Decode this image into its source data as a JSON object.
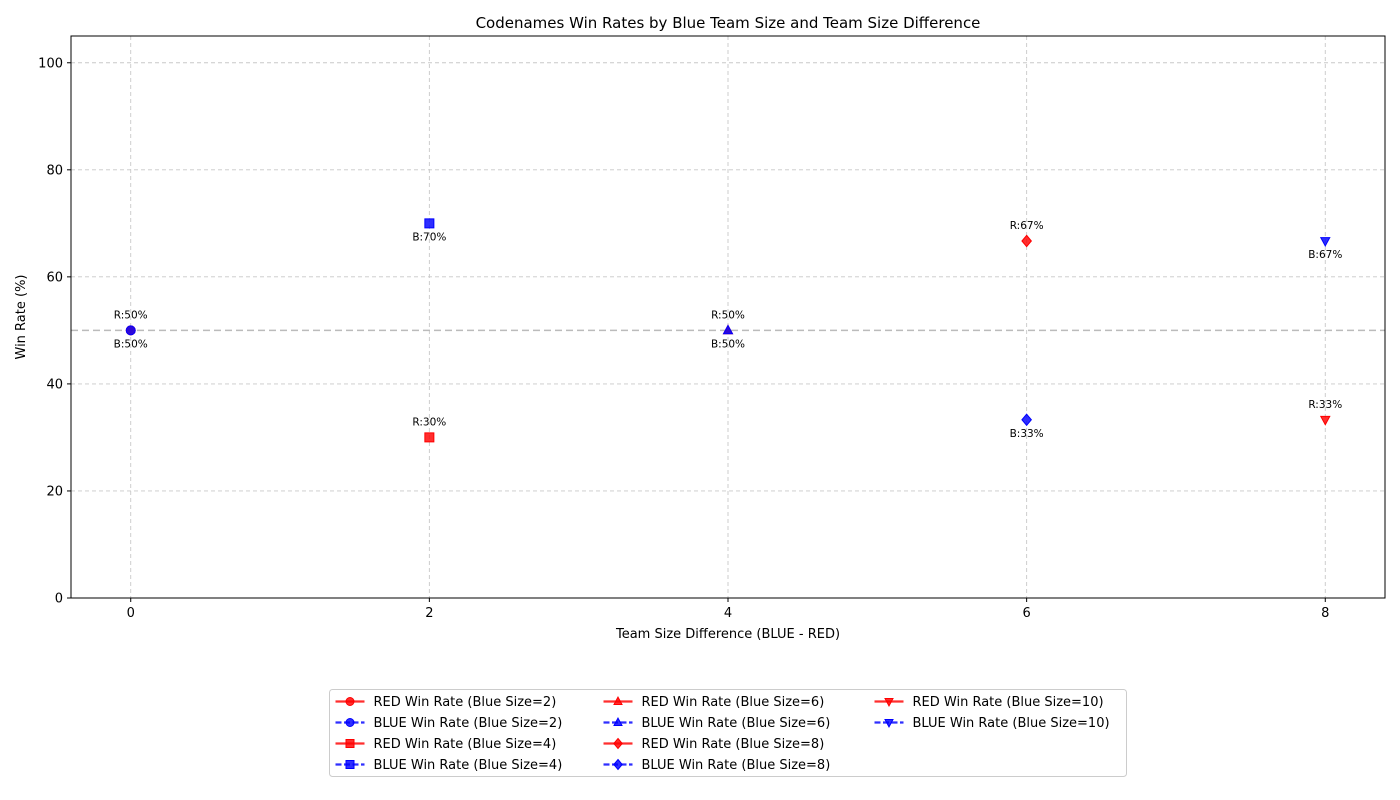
{
  "chart_data": {
    "type": "scatter",
    "title": "Codenames Win Rates by Blue Team Size and Team Size Difference",
    "xlabel": "Team Size Difference (BLUE - RED)",
    "ylabel": "Win Rate (%)",
    "xlim": [
      -0.4,
      8.4
    ],
    "ylim": [
      0,
      105
    ],
    "xticks": [
      0,
      2,
      4,
      6,
      8
    ],
    "yticks": [
      0,
      20,
      40,
      60,
      80,
      100
    ],
    "grid": true,
    "reference_line": {
      "y": 50,
      "style": "dashed",
      "color": "#bbbbbb"
    },
    "legend_placement": "bottom-center",
    "legend_columns": 3,
    "colors": {
      "red": "#ff0000",
      "blue": "#0000ff"
    },
    "series": [
      {
        "name": "RED Win Rate (Blue Size=2)",
        "team": "red",
        "marker": "circle",
        "line": "solid",
        "points": [
          {
            "x": 0,
            "y": 50,
            "label": "R:50%"
          }
        ]
      },
      {
        "name": "BLUE Win Rate (Blue Size=2)",
        "team": "blue",
        "marker": "circle",
        "line": "dashed",
        "points": [
          {
            "x": 0,
            "y": 50,
            "label": "B:50%"
          }
        ]
      },
      {
        "name": "RED Win Rate (Blue Size=4)",
        "team": "red",
        "marker": "square",
        "line": "solid",
        "points": [
          {
            "x": 2,
            "y": 30,
            "label": "R:30%"
          }
        ]
      },
      {
        "name": "BLUE Win Rate (Blue Size=4)",
        "team": "blue",
        "marker": "square",
        "line": "dashed",
        "points": [
          {
            "x": 2,
            "y": 70,
            "label": "B:70%"
          }
        ]
      },
      {
        "name": "RED Win Rate (Blue Size=6)",
        "team": "red",
        "marker": "triangle-up",
        "line": "solid",
        "points": [
          {
            "x": 4,
            "y": 50,
            "label": "R:50%"
          }
        ]
      },
      {
        "name": "BLUE Win Rate (Blue Size=6)",
        "team": "blue",
        "marker": "triangle-up",
        "line": "dashed",
        "points": [
          {
            "x": 4,
            "y": 50,
            "label": "B:50%"
          }
        ]
      },
      {
        "name": "RED Win Rate (Blue Size=8)",
        "team": "red",
        "marker": "diamond",
        "line": "solid",
        "points": [
          {
            "x": 6,
            "y": 66.7,
            "label": "R:67%"
          }
        ]
      },
      {
        "name": "BLUE Win Rate (Blue Size=8)",
        "team": "blue",
        "marker": "diamond",
        "line": "dashed",
        "points": [
          {
            "x": 6,
            "y": 33.3,
            "label": "B:33%"
          }
        ]
      },
      {
        "name": "RED Win Rate (Blue Size=10)",
        "team": "red",
        "marker": "triangle-down",
        "line": "solid",
        "points": [
          {
            "x": 8,
            "y": 33.3,
            "label": "R:33%"
          }
        ]
      },
      {
        "name": "BLUE Win Rate (Blue Size=10)",
        "team": "blue",
        "marker": "triangle-down",
        "line": "dashed",
        "points": [
          {
            "x": 8,
            "y": 66.7,
            "label": "B:67%"
          }
        ]
      }
    ]
  }
}
